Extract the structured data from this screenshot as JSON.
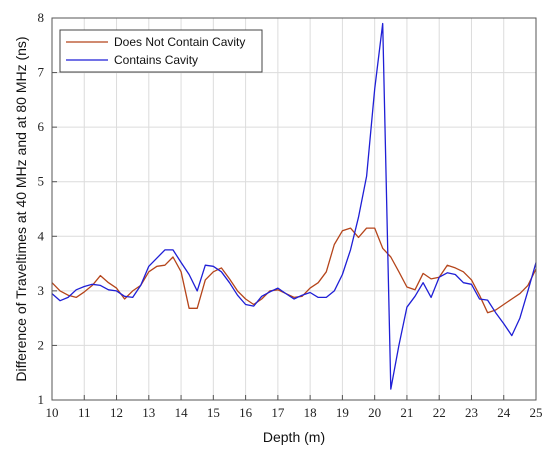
{
  "chart_data": {
    "type": "line",
    "xlabel": "Depth (m)",
    "ylabel": "Difference of Traveltimes at 40 MHz and at 80 MHz (ns)",
    "xlim": [
      10,
      25
    ],
    "ylim": [
      1,
      8
    ],
    "x_ticks": [
      "10",
      "11",
      "12",
      "13",
      "14",
      "15",
      "16",
      "17",
      "18",
      "19",
      "20",
      "21",
      "22",
      "23",
      "24",
      "25"
    ],
    "y_ticks": [
      "1",
      "2",
      "3",
      "4",
      "5",
      "6",
      "7",
      "8"
    ],
    "grid": true,
    "legend_position": "top-left",
    "series": [
      {
        "name": "Does Not Contain Cavity",
        "color": "#b5451b",
        "x": [
          10,
          10.25,
          10.5,
          10.75,
          11,
          11.25,
          11.5,
          11.75,
          12,
          12.25,
          12.5,
          12.75,
          13,
          13.25,
          13.5,
          13.75,
          14,
          14.25,
          14.5,
          14.75,
          15,
          15.25,
          15.5,
          15.75,
          16,
          16.25,
          16.5,
          16.75,
          17,
          17.25,
          17.5,
          17.75,
          18,
          18.25,
          18.5,
          18.75,
          19,
          19.25,
          19.5,
          19.75,
          20,
          20.25,
          20.5,
          20.75,
          21,
          21.25,
          21.5,
          21.75,
          22,
          22.25,
          22.5,
          22.75,
          23,
          23.25,
          23.5,
          23.75,
          24,
          24.25,
          24.5,
          24.75,
          25
        ],
        "y": [
          3.15,
          3.0,
          2.92,
          2.88,
          2.98,
          3.1,
          3.28,
          3.15,
          3.05,
          2.85,
          3.0,
          3.1,
          3.35,
          3.45,
          3.47,
          3.62,
          3.35,
          2.68,
          2.68,
          3.2,
          3.35,
          3.42,
          3.22,
          3.0,
          2.85,
          2.75,
          2.85,
          3.0,
          3.02,
          2.95,
          2.88,
          2.9,
          3.05,
          3.15,
          3.35,
          3.85,
          4.1,
          4.15,
          3.98,
          4.15,
          4.15,
          3.78,
          3.62,
          3.35,
          3.07,
          3.02,
          3.32,
          3.22,
          3.25,
          3.47,
          3.42,
          3.35,
          3.2,
          2.92,
          2.6,
          2.65,
          2.75,
          2.85,
          2.95,
          3.1,
          3.4
        ]
      },
      {
        "name": "Contains Cavity",
        "color": "#1f1fd6",
        "x": [
          10,
          10.25,
          10.5,
          10.75,
          11,
          11.25,
          11.5,
          11.75,
          12,
          12.25,
          12.5,
          12.75,
          13,
          13.25,
          13.5,
          13.75,
          14,
          14.25,
          14.5,
          14.75,
          15,
          15.25,
          15.5,
          15.75,
          16,
          16.25,
          16.5,
          16.75,
          17,
          17.25,
          17.5,
          17.75,
          18,
          18.25,
          18.5,
          18.75,
          19,
          19.25,
          19.5,
          19.75,
          20,
          20.25,
          20.5,
          20.75,
          21,
          21.25,
          21.5,
          21.75,
          22,
          22.25,
          22.5,
          22.75,
          23,
          23.25,
          23.5,
          23.75,
          24,
          24.25,
          24.5,
          24.75,
          25
        ],
        "y": [
          2.95,
          2.82,
          2.88,
          3.02,
          3.08,
          3.12,
          3.1,
          3.02,
          3.0,
          2.9,
          2.88,
          3.1,
          3.45,
          3.6,
          3.75,
          3.75,
          3.52,
          3.3,
          3.0,
          3.47,
          3.45,
          3.35,
          3.15,
          2.92,
          2.75,
          2.72,
          2.9,
          2.98,
          3.05,
          2.95,
          2.85,
          2.92,
          2.97,
          2.88,
          2.88,
          3.0,
          3.3,
          3.75,
          4.35,
          5.1,
          6.7,
          7.9,
          1.2,
          2.0,
          2.7,
          2.9,
          3.15,
          2.88,
          3.25,
          3.33,
          3.3,
          3.15,
          3.12,
          2.85,
          2.83,
          2.6,
          2.4,
          2.18,
          2.5,
          3.0,
          3.52
        ]
      }
    ]
  }
}
